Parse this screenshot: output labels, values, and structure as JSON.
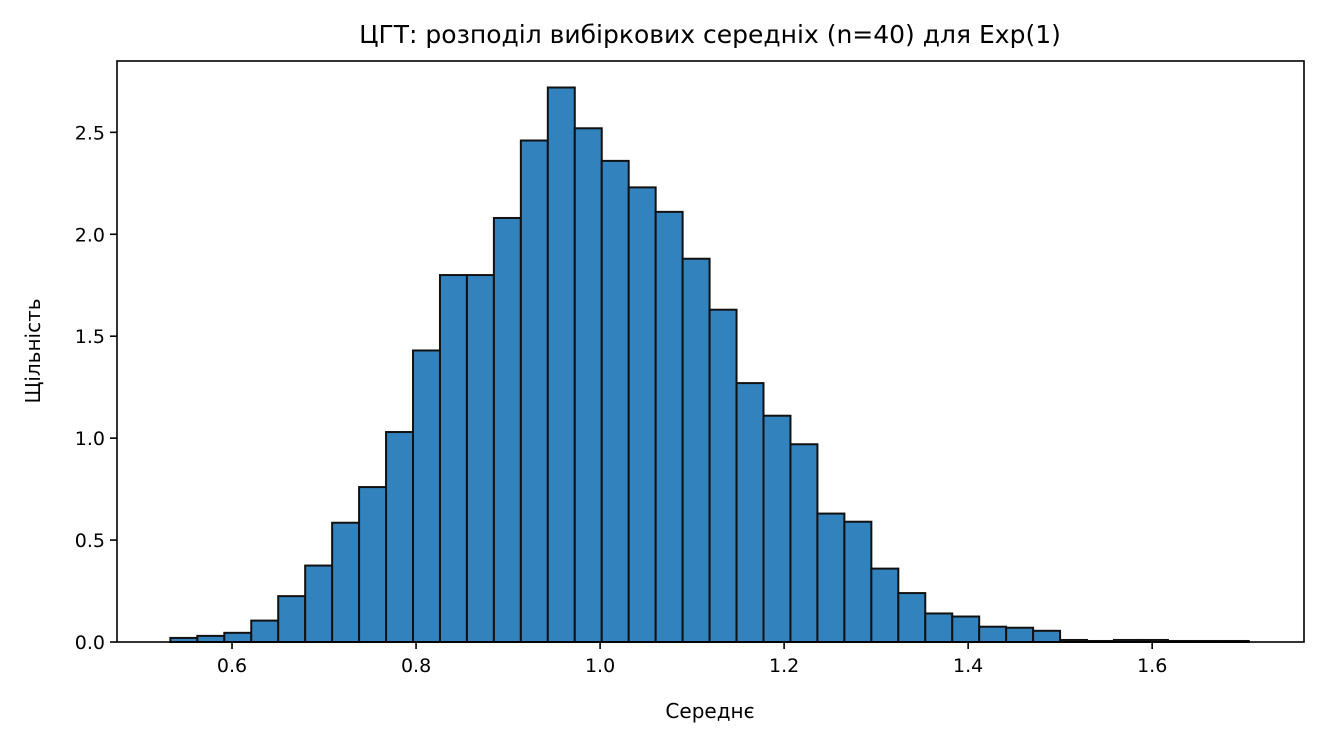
{
  "chart_data": {
    "type": "bar",
    "subtype": "histogram",
    "title": "ЦГТ: розподіл вибіркових середніх (n=40) для Exp(1)",
    "xlabel": "Середнє",
    "ylabel": "Щільність",
    "xlim": [
      0.475,
      1.765
    ],
    "ylim": [
      0,
      2.85
    ],
    "bar_color": "#3182bd",
    "edge_color": "#111111",
    "grid": false,
    "legend": "none",
    "bin_edges": [
      0.533,
      0.5623,
      0.5916,
      0.6209,
      0.6502,
      0.6795,
      0.7088,
      0.7381,
      0.7674,
      0.7967,
      0.826,
      0.8553,
      0.8846,
      0.9139,
      0.9432,
      0.9725,
      1.0018,
      1.0311,
      1.0604,
      1.0897,
      1.119,
      1.1483,
      1.1776,
      1.2069,
      1.2362,
      1.2655,
      1.2948,
      1.3241,
      1.3534,
      1.3827,
      1.412,
      1.4413,
      1.4706,
      1.4999,
      1.5292,
      1.5585,
      1.5878,
      1.6171,
      1.6464,
      1.6757,
      1.705
    ],
    "values": [
      0.02,
      0.03,
      0.045,
      0.105,
      0.225,
      0.375,
      0.585,
      0.76,
      1.03,
      1.43,
      1.8,
      1.8,
      2.08,
      2.46,
      2.72,
      2.52,
      2.36,
      2.23,
      2.11,
      1.88,
      1.63,
      1.27,
      1.11,
      0.97,
      0.63,
      0.59,
      0.36,
      0.24,
      0.14,
      0.125,
      0.075,
      0.07,
      0.055,
      0.01,
      0.005,
      0.01,
      0.01,
      0.005,
      0.005,
      0.005
    ],
    "xticks": [
      0.6,
      0.8,
      1.0,
      1.2,
      1.4,
      1.6
    ],
    "xtick_labels": [
      "0.6",
      "0.8",
      "1.0",
      "1.2",
      "1.4",
      "1.6"
    ],
    "yticks": [
      0.0,
      0.5,
      1.0,
      1.5,
      2.0,
      2.5
    ],
    "ytick_labels": [
      "0.0",
      "0.5",
      "1.0",
      "1.5",
      "2.0",
      "2.5"
    ]
  }
}
